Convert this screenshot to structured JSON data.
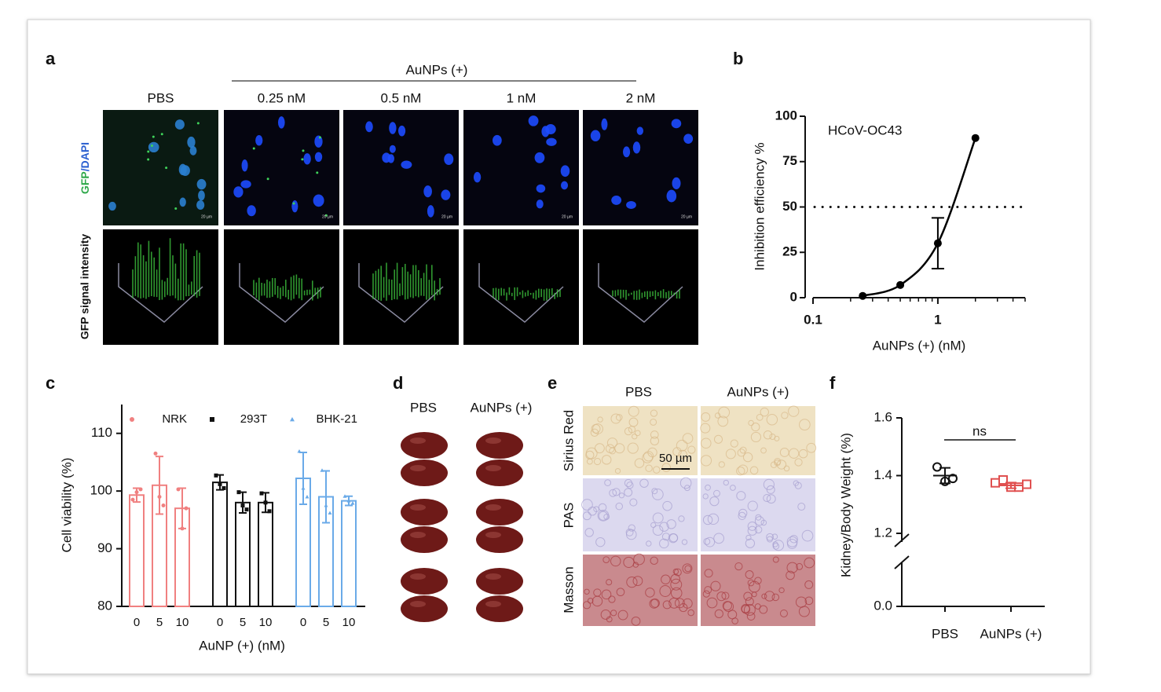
{
  "panels": {
    "a": {
      "letter": "a",
      "group_label": "AuNPs (+)",
      "columns": [
        "PBS",
        "0.25 nM",
        "0.5 nM",
        "1 nM",
        "2 nM"
      ],
      "row_gfp": "GFP",
      "row_dapi": "/DAPI",
      "row_intensity": "GFP signal intensity",
      "scale_label": "20 µm"
    },
    "d": {
      "letter": "d",
      "columns": [
        "PBS",
        "AuNPs (+)"
      ]
    },
    "e": {
      "letter": "e",
      "columns": [
        "PBS",
        "AuNPs (+)"
      ],
      "rows": [
        "Sirius Red",
        "PAS",
        "Masson"
      ],
      "scale_bar": "50 µm"
    }
  },
  "chart_data": [
    {
      "type": "line",
      "letter": "b",
      "annotation": "HCoV-OC43",
      "xlabel": "AuNPs (+) (nM)",
      "ylabel": "Inhibition efficiency %",
      "x": [
        0.25,
        0.5,
        1,
        2
      ],
      "values": [
        1,
        7,
        30,
        88
      ],
      "errors": [
        null,
        null,
        14,
        null
      ],
      "color": "#000000",
      "xscale": "log",
      "xlim": [
        0.1,
        5
      ],
      "xticks": [
        0.1,
        1
      ],
      "xminor_ticks": [
        0.2,
        0.3,
        0.4,
        0.5,
        0.6,
        0.7,
        0.8,
        0.9,
        2,
        3,
        4,
        5
      ],
      "ylim": [
        0,
        100
      ],
      "yticks": [
        0,
        25,
        50,
        75,
        100
      ],
      "hline": 50
    },
    {
      "type": "bar",
      "letter": "c",
      "xlabel": "AuNP (+) (nM)",
      "ylabel": "Cell viability (%)",
      "categories": [
        "0",
        "5",
        "10"
      ],
      "series": [
        {
          "name": "NRK",
          "color": "#f08080",
          "marker": "circle",
          "values": [
            99.3,
            101,
            97
          ],
          "errors": [
            1.2,
            5,
            3.5
          ],
          "points": [
            [
              98.5,
              99.8,
              100.3
            ],
            [
              106.5,
              99,
              97.5
            ],
            [
              100.3,
              93.5,
              97
            ]
          ]
        },
        {
          "name": "293T",
          "color": "#111111",
          "marker": "square",
          "values": [
            101.5,
            98,
            98
          ],
          "errors": [
            1.3,
            1.8,
            1.7
          ],
          "points": [
            [
              102.7,
              101.2,
              100.5
            ],
            [
              99.8,
              97.5,
              96.8
            ],
            [
              99.6,
              98,
              96.5
            ]
          ]
        },
        {
          "name": "BHK-21",
          "color": "#6aaae8",
          "marker": "triangle",
          "values": [
            102.2,
            99,
            98.3
          ],
          "errors": [
            4.5,
            4.5,
            0.8
          ],
          "points": [
            [
              106.9,
              100.5,
              99
            ],
            [
              103.6,
              97.5,
              96.2
            ],
            [
              99.1,
              98.3,
              97.9
            ]
          ]
        }
      ],
      "ylim": [
        80,
        115
      ],
      "yticks": [
        80,
        90,
        100,
        110
      ]
    },
    {
      "type": "scatter",
      "letter": "f",
      "ylabel": "Kidney/Body Weight (%)",
      "annotation": "ns",
      "categories": [
        "PBS",
        "AuNPs (+)"
      ],
      "series": [
        {
          "name": "PBS",
          "color": "#111111",
          "marker": "circle",
          "points": [
            1.43,
            1.38,
            1.39
          ],
          "mean": 1.4,
          "error": 0.027
        },
        {
          "name": "AuNPs (+)",
          "color": "#e05050",
          "marker": "square",
          "points": [
            1.375,
            1.385,
            1.36,
            1.36,
            1.37
          ],
          "mean": 1.366,
          "error": 0.01
        }
      ],
      "ylim": [
        0,
        1.6
      ],
      "yticks": [
        {
          "value": 0,
          "label": "0.0"
        },
        1.2,
        1.4,
        1.6
      ],
      "axis_break": true
    }
  ]
}
